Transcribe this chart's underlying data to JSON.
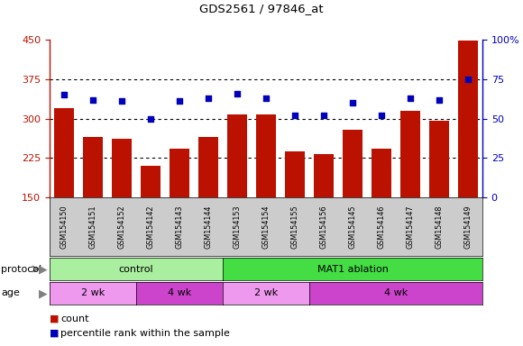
{
  "title": "GDS2561 / 97846_at",
  "samples": [
    "GSM154150",
    "GSM154151",
    "GSM154152",
    "GSM154142",
    "GSM154143",
    "GSM154144",
    "GSM154153",
    "GSM154154",
    "GSM154155",
    "GSM154156",
    "GSM154145",
    "GSM154146",
    "GSM154147",
    "GSM154148",
    "GSM154149"
  ],
  "counts": [
    320,
    265,
    262,
    210,
    242,
    265,
    308,
    308,
    238,
    232,
    278,
    242,
    314,
    295,
    448
  ],
  "percentile_ranks": [
    65,
    62,
    61,
    50,
    61,
    63,
    66,
    63,
    52,
    52,
    60,
    52,
    63,
    62,
    75
  ],
  "left_ylim": [
    150,
    450
  ],
  "left_yticks": [
    150,
    225,
    300,
    375,
    450
  ],
  "right_ylim": [
    0,
    100
  ],
  "right_yticks": [
    0,
    25,
    50,
    75,
    100
  ],
  "bar_color": "#bb1100",
  "dot_color": "#0000bb",
  "protocol_control_color": "#aaeea0",
  "protocol_ablation_color": "#44dd44",
  "age_2wk_color": "#ee99ee",
  "age_4wk_color": "#cc44cc",
  "count_label": "count",
  "percentile_label": "percentile rank within the sample",
  "protocol_groups": [
    {
      "label": "control",
      "n_samples": 6
    },
    {
      "label": "MAT1 ablation",
      "n_samples": 9
    }
  ],
  "age_groups": [
    {
      "label": "2 wk",
      "n_samples": 3,
      "color": "#ee99ee"
    },
    {
      "label": "4 wk",
      "n_samples": 3,
      "color": "#cc44cc"
    },
    {
      "label": "2 wk",
      "n_samples": 3,
      "color": "#ee99ee"
    },
    {
      "label": "4 wk",
      "n_samples": 6,
      "color": "#cc44cc"
    }
  ]
}
